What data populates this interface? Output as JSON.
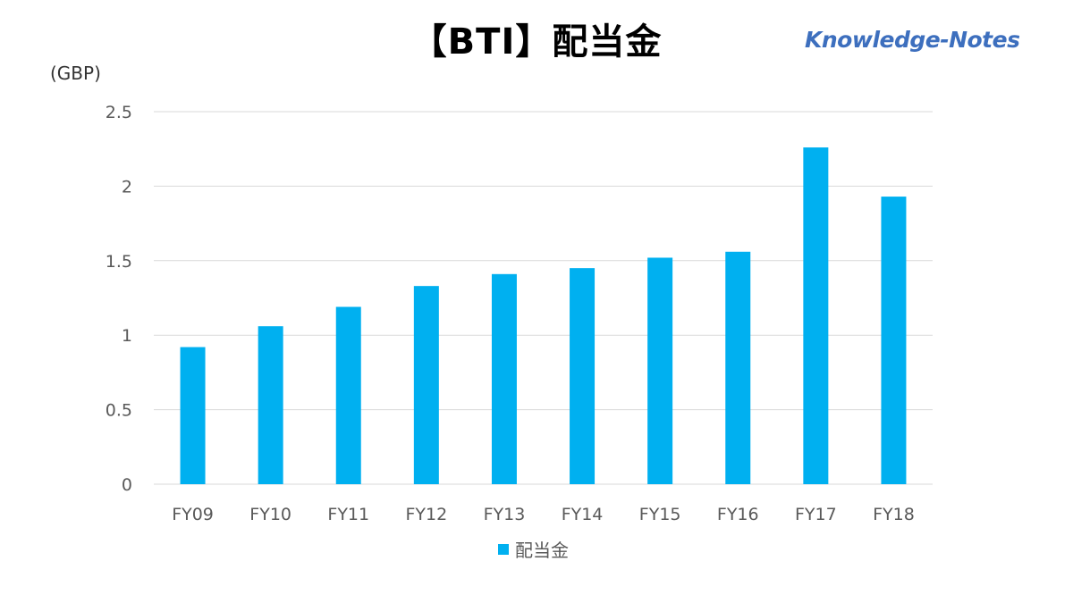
{
  "title": "【BTI】配当金",
  "logo_text": "Knowledge-Notes",
  "unit": "(GBP)",
  "colors": {
    "bar": "#00b0f0",
    "grid": "#d9d9d9",
    "tick_text": "#595959",
    "logo": "#3d6fbe"
  },
  "chart_data": {
    "type": "bar",
    "title": "【BTI】配当金",
    "ylabel": "(GBP)",
    "xlabel": "",
    "categories": [
      "FY09",
      "FY10",
      "FY11",
      "FY12",
      "FY13",
      "FY14",
      "FY15",
      "FY16",
      "FY17",
      "FY18"
    ],
    "series": [
      {
        "name": "配当金",
        "values": [
          0.92,
          1.06,
          1.19,
          1.33,
          1.41,
          1.45,
          1.52,
          1.56,
          2.26,
          1.93
        ]
      }
    ],
    "ylim": [
      0,
      2.5
    ],
    "yticks": [
      "0",
      "0.5",
      "1",
      "1.5",
      "2",
      "2.5"
    ],
    "grid": true,
    "legend": "bottom"
  }
}
